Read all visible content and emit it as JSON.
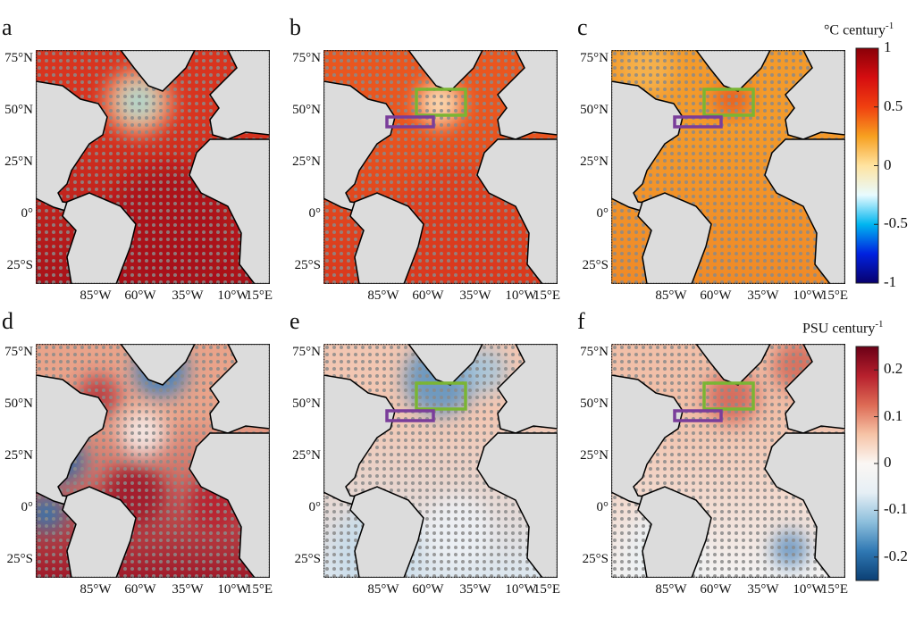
{
  "panels": [
    {
      "letter": "a",
      "variable": "temperature",
      "base": "#d8341f",
      "south": "#a8121a"
    },
    {
      "letter": "b",
      "variable": "temperature",
      "base": "#e9561f",
      "south": "#d9381d",
      "boxes": true
    },
    {
      "letter": "c",
      "variable": "temperature",
      "base": "#f39a2b",
      "south": "#f08a27",
      "boxes": true
    },
    {
      "letter": "d",
      "variable": "salinity",
      "base": "#e9a38a",
      "south": "#a01a2a"
    },
    {
      "letter": "e",
      "variable": "salinity",
      "base": "#f2c6b2",
      "south": "#dbe7f0",
      "boxes": true
    },
    {
      "letter": "f",
      "variable": "salinity",
      "base": "#f1bfa8",
      "south": "#f3f3f3",
      "boxes": true
    }
  ],
  "lat_labels": [
    "75°N",
    "50°N",
    "25°N",
    "0°",
    "25°S"
  ],
  "lon_labels": [
    "85°W",
    "60°W",
    "35°W",
    "10°W",
    "15°E"
  ],
  "colorbars": [
    {
      "title": "°C century",
      "exp": "-1",
      "ticks": [
        "1",
        "0.5",
        "0",
        "-0.5",
        "-1"
      ],
      "range": [
        -1,
        1
      ],
      "colors": [
        "#08006e",
        "#0022e0",
        "#00b6f0",
        "#e8fbff",
        "#ffe3a0",
        "#f7a020",
        "#f04010",
        "#d50d10",
        "#8a0008"
      ]
    },
    {
      "title": "PSU century",
      "exp": "-1",
      "ticks": [
        "0.2",
        "0.1",
        "0",
        "-0.1",
        "-0.2"
      ],
      "range": [
        -0.25,
        0.25
      ],
      "colors": [
        "#0b3f74",
        "#2f78b3",
        "#8dbfdc",
        "#e6eff5",
        "#fbf7f4",
        "#f6c3a6",
        "#dd6b55",
        "#b7202d",
        "#6b0016"
      ]
    }
  ],
  "land_color": "#dcdcdc",
  "box_colors": {
    "green": "#7ab534",
    "purple": "#7a3d9a"
  }
}
